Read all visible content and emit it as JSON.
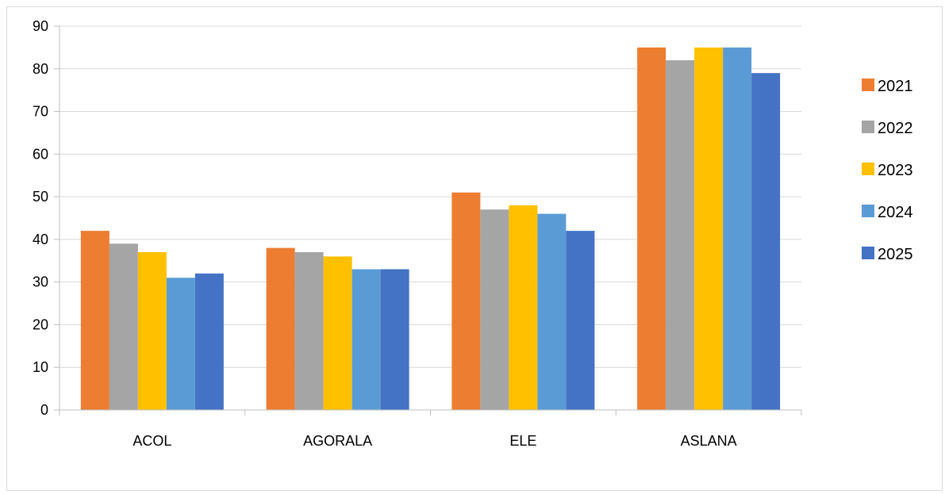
{
  "chart_data": {
    "type": "bar",
    "title": "",
    "xlabel": "",
    "ylabel": "",
    "ylim": [
      0,
      90
    ],
    "yticks": [
      0,
      10,
      20,
      30,
      40,
      50,
      60,
      70,
      80,
      90
    ],
    "grid": true,
    "legend_position": "right",
    "categories": [
      "ACOL",
      "AGORALA",
      "ELE",
      "ASLANA"
    ],
    "series": [
      {
        "name": "2021",
        "color": "#ED7D31",
        "values": [
          42,
          38,
          51,
          85
        ]
      },
      {
        "name": "2022",
        "color": "#A5A5A5",
        "values": [
          39,
          37,
          47,
          82
        ]
      },
      {
        "name": "2023",
        "color": "#FFC000",
        "values": [
          37,
          36,
          48,
          85
        ]
      },
      {
        "name": "2024",
        "color": "#5B9BD5",
        "values": [
          31,
          33,
          46,
          85
        ]
      },
      {
        "name": "2025",
        "color": "#4472C4",
        "values": [
          32,
          33,
          42,
          79
        ]
      }
    ]
  }
}
